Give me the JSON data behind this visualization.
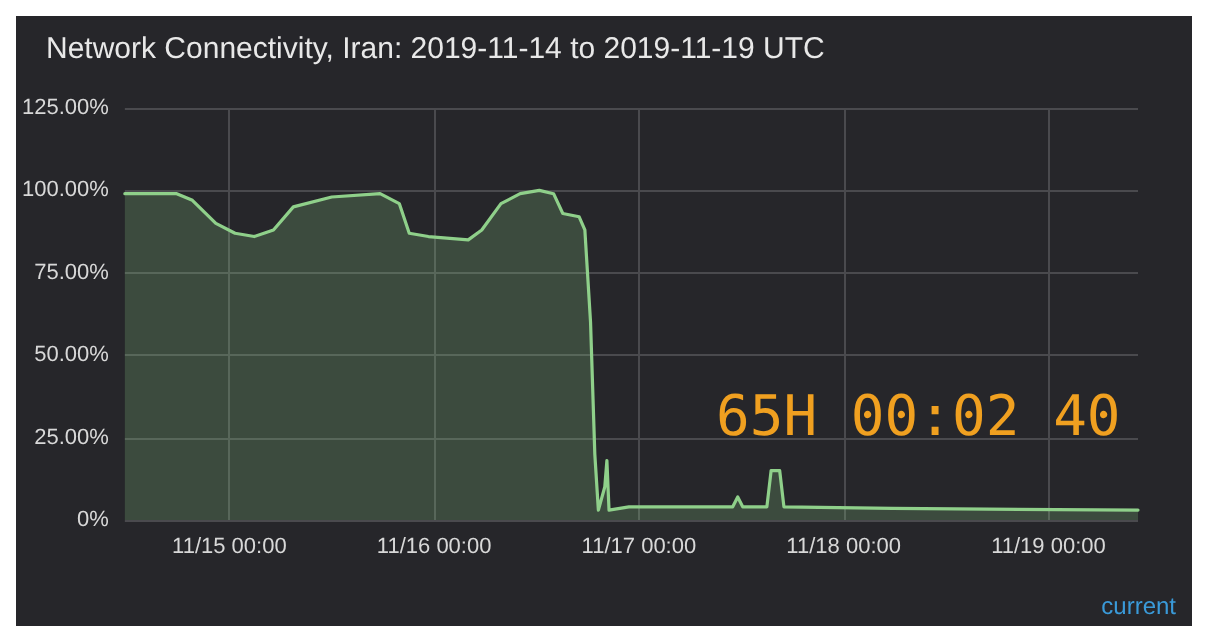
{
  "chart_data": {
    "type": "area",
    "title": "Network Connectivity, Iran: 2019-11-14 to 2019-11-19 UTC",
    "x": [
      "2019-11-14T11:45",
      "2019-11-14T17:50",
      "2019-11-14T19:40",
      "2019-11-14T22:25",
      "2019-11-15T00:40",
      "2019-11-15T02:55",
      "2019-11-15T05:10",
      "2019-11-15T07:30",
      "2019-11-15T12:00",
      "2019-11-15T17:40",
      "2019-11-15T19:55",
      "2019-11-15T21:05",
      "2019-11-15T23:20",
      "2019-11-16T04:00",
      "2019-11-16T05:35",
      "2019-11-16T07:50",
      "2019-11-16T10:05",
      "2019-11-16T12:20",
      "2019-11-16T14:00",
      "2019-11-16T15:05",
      "2019-11-16T17:00",
      "2019-11-16T17:40",
      "2019-11-16T18:20",
      "2019-11-16T18:50",
      "2019-11-16T19:15",
      "2019-11-16T20:00",
      "2019-11-16T20:15",
      "2019-11-16T20:30",
      "2019-11-16T22:50",
      "2019-11-17T11:00",
      "2019-11-17T11:35",
      "2019-11-17T12:10",
      "2019-11-17T15:00",
      "2019-11-17T15:30",
      "2019-11-17T16:30",
      "2019-11-17T17:00",
      "2019-11-18T05:40",
      "2019-11-19T10:30"
    ],
    "series": [
      {
        "color": "#8fd08a",
        "values": [
          99,
          99,
          97,
          90,
          87,
          86,
          88,
          95,
          98,
          99,
          96,
          87,
          86,
          85,
          88,
          96,
          99,
          100,
          99,
          93,
          92,
          88,
          60,
          20,
          3,
          10,
          18,
          3,
          4,
          4,
          7,
          4,
          4,
          15,
          15,
          4,
          3.5,
          3
        ]
      }
    ],
    "xlim": [
      "2019-11-14T11:45",
      "2019-11-19T10:30"
    ],
    "xticks": [
      {
        "value": "2019-11-15T00:00",
        "label": "11/15 00:00"
      },
      {
        "value": "2019-11-16T00:00",
        "label": "11/16 00:00"
      },
      {
        "value": "2019-11-17T00:00",
        "label": "11/17 00:00"
      },
      {
        "value": "2019-11-18T00:00",
        "label": "11/18 00:00"
      },
      {
        "value": "2019-11-19T00:00",
        "label": "11/19 00:00"
      }
    ],
    "ylim": [
      0,
      125
    ],
    "yticks": [
      {
        "value": 0,
        "label": "0%"
      },
      {
        "value": 25,
        "label": "25.00%"
      },
      {
        "value": 50,
        "label": "50.00%"
      },
      {
        "value": 75,
        "label": "75.00%"
      },
      {
        "value": 100,
        "label": "100.00%"
      },
      {
        "value": 125,
        "label": "125.00%"
      }
    ],
    "grid": true,
    "marker": "none",
    "line_style": "solid",
    "annotations": [
      "65H 00:02 40",
      "current"
    ]
  }
}
